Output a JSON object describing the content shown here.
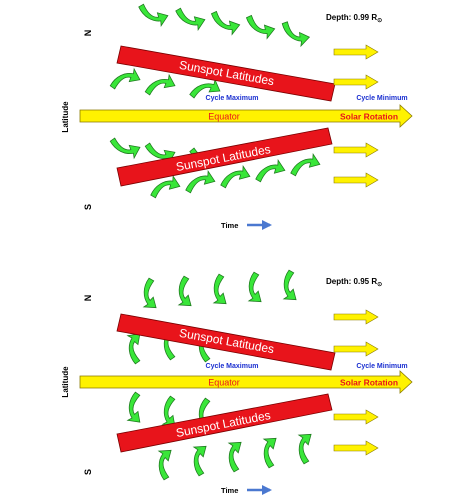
{
  "panels": [
    {
      "depth_prefix": "Depth: 0.99 R",
      "depth_symbol": "⊙",
      "north": "N",
      "south": "S",
      "latitude_label": "Latitude",
      "upper_band_label": "Sunspot Latitudes",
      "lower_band_label": "Sunspot Latitudes",
      "equator_label": "Equator",
      "cycle_maximum": "Cycle Maximum",
      "cycle_minimum": "Cycle Minimum",
      "solar_rotation": "Solar Rotation",
      "time_label": "Time",
      "arrow_rows": {
        "top": [
          [
            153,
            14,
            -30
          ],
          [
            190,
            18,
            -30
          ],
          [
            225,
            22,
            -25
          ],
          [
            260,
            26,
            -25
          ],
          [
            295,
            33,
            -20
          ]
        ],
        "upper_mid": [
          [
            125,
            80,
            35
          ],
          [
            160,
            86,
            35
          ],
          [
            205,
            90,
            40
          ]
        ],
        "lower_mid": [
          [
            125,
            147,
            -35
          ],
          [
            160,
            152,
            -35
          ],
          [
            205,
            156,
            -40
          ]
        ],
        "bottom": [
          [
            165,
            188,
            30
          ],
          [
            200,
            183,
            30
          ],
          [
            235,
            178,
            30
          ],
          [
            270,
            172,
            30
          ],
          [
            305,
            166,
            30
          ]
        ]
      }
    },
    {
      "depth_prefix": "Depth: 0.95 R",
      "depth_symbol": "⊙",
      "north": "N",
      "south": "S",
      "latitude_label": "Latitude",
      "upper_band_label": "Sunspot Latitudes",
      "lower_band_label": "Sunspot Latitudes",
      "equator_label": "Equator",
      "cycle_maximum": "Cycle Maximum",
      "cycle_minimum": "Cycle Minimum",
      "solar_rotation": "Solar Rotation",
      "time_label": "Time",
      "arrow_rows": {
        "top": [
          [
            150,
            42,
            30
          ],
          [
            185,
            40,
            30
          ],
          [
            220,
            38,
            30
          ],
          [
            255,
            36,
            30
          ],
          [
            290,
            34,
            30
          ]
        ],
        "upper_mid": [
          [
            135,
            96,
            -35
          ],
          [
            170,
            92,
            -35
          ],
          [
            205,
            94,
            -35
          ]
        ],
        "lower_mid": [
          [
            135,
            156,
            35
          ],
          [
            170,
            160,
            35
          ],
          [
            205,
            162,
            35
          ]
        ],
        "bottom": [
          [
            165,
            212,
            -30
          ],
          [
            200,
            208,
            -30
          ],
          [
            235,
            204,
            -30
          ],
          [
            270,
            200,
            -30
          ],
          [
            305,
            196,
            -30
          ]
        ]
      }
    }
  ],
  "colors": {
    "sunspot_band": "#e8141b",
    "band_text": "#ffffff",
    "equator_fill": "#fff200",
    "equator_text": "#e8141b",
    "yellow_arrow": "#fff200",
    "arrow_outline": "#8a7a00",
    "green_arrow": "#39e639",
    "green_outline": "#1f7a1f",
    "label_blue": "#1a2fd0",
    "time_arrow": "#4a78d0"
  }
}
